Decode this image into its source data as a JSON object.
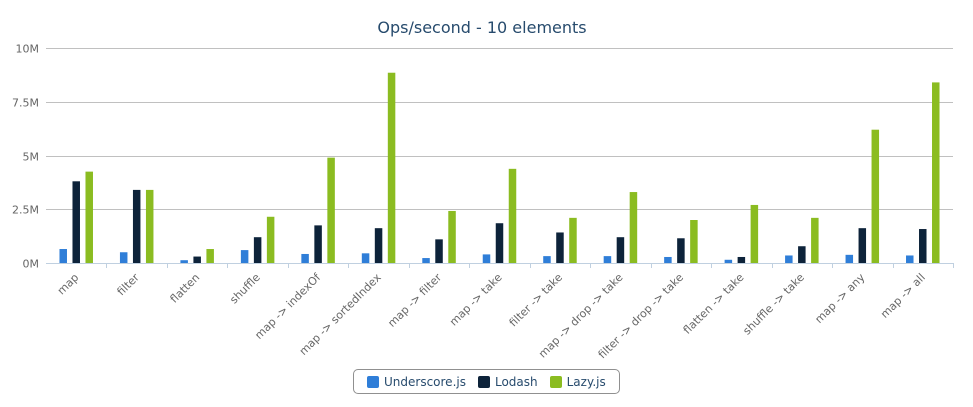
{
  "chart_data": {
    "type": "bar",
    "title": "Ops/second - 10 elements",
    "xlabel": "",
    "ylabel": "",
    "ylim": [
      0,
      10000000
    ],
    "yticks": [
      {
        "value": 0,
        "label": "0M"
      },
      {
        "value": 2500000,
        "label": "2.5M"
      },
      {
        "value": 5000000,
        "label": "5M"
      },
      {
        "value": 7500000,
        "label": "7.5M"
      },
      {
        "value": 10000000,
        "label": "10M"
      }
    ],
    "grid": true,
    "legend_position": "bottom-center",
    "categories": [
      "map",
      "filter",
      "flatten",
      "shuffle",
      "map -> indexOf",
      "map -> sortedIndex",
      "map -> filter",
      "map -> take",
      "filter -> take",
      "map -> drop -> take",
      "filter -> drop -> take",
      "flatten -> take",
      "shuffle -> take",
      "map -> any",
      "map -> all"
    ],
    "series": [
      {
        "name": "Underscore.js",
        "color": "#2f7ed8",
        "values": [
          650000,
          500000,
          130000,
          600000,
          420000,
          450000,
          230000,
          400000,
          320000,
          320000,
          280000,
          150000,
          350000,
          380000,
          350000
        ]
      },
      {
        "name": "Lodash",
        "color": "#0d233a",
        "values": [
          3800000,
          3400000,
          300000,
          1200000,
          1750000,
          1620000,
          1100000,
          1850000,
          1420000,
          1200000,
          1150000,
          280000,
          780000,
          1620000,
          1580000
        ]
      },
      {
        "name": "Lazy.js",
        "color": "#8bbc21",
        "values": [
          4250000,
          3400000,
          650000,
          2150000,
          4900000,
          8850000,
          2420000,
          4380000,
          2100000,
          3300000,
          2000000,
          2700000,
          2100000,
          6200000,
          8400000
        ]
      }
    ]
  }
}
